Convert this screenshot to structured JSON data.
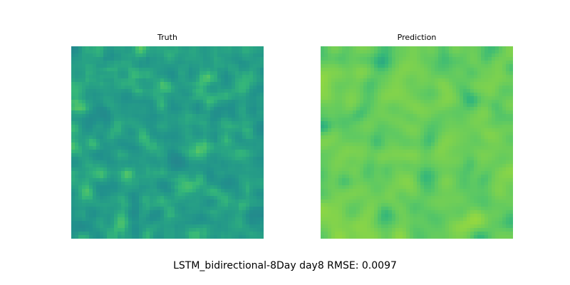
{
  "chart_data": [
    {
      "type": "heatmap",
      "title": "Truth",
      "grid_size": 54,
      "colormap": "viridis",
      "value_range_normalized": [
        0.58,
        0.8
      ],
      "mean_normalized": 0.66,
      "axis": "off"
    },
    {
      "type": "heatmap",
      "title": "Prediction",
      "grid_size": 54,
      "colormap": "viridis",
      "value_range_normalized": [
        0.72,
        0.88
      ],
      "mean_normalized": 0.82,
      "axis": "off"
    }
  ],
  "suptitle": "LSTM_bidirectional-8Day day8 RMSE: 0.0097"
}
